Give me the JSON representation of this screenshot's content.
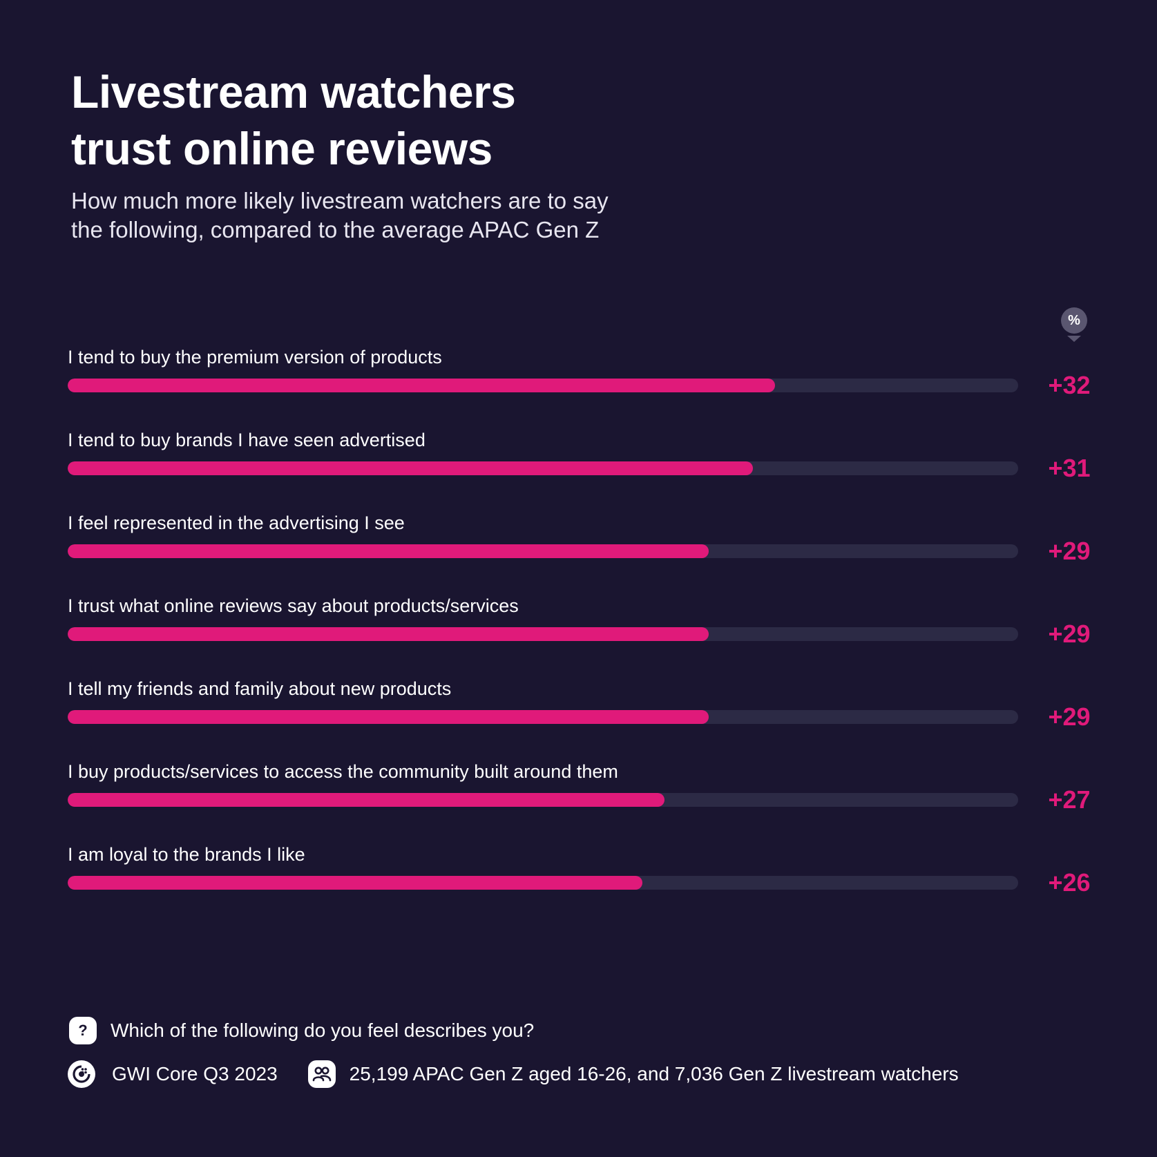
{
  "title": {
    "line1": "Livestream watchers",
    "line2": "trust online reviews"
  },
  "subtitle": {
    "line1": "How much more likely livestream watchers are to say",
    "line2": "the following, compared to the average APAC Gen Z"
  },
  "unit_badge": "%",
  "colors": {
    "background": "#1a1530",
    "bar_fill": "#e01a7a",
    "bar_track": "#2c2a45",
    "value_text": "#e01a7a"
  },
  "chart_data": {
    "type": "bar",
    "orientation": "horizontal",
    "title": "Livestream watchers trust online reviews",
    "subtitle": "How much more likely livestream watchers are to say the following, compared to the average APAC Gen Z",
    "unit": "%",
    "xlim": [
      0,
      43
    ],
    "categories": [
      "I tend to buy the premium version of products",
      "I tend to buy brands I have seen advertised",
      "I feel represented in the advertising I see",
      "I trust what online reviews say about products/services",
      "I tell my friends and family about new products",
      "I buy products/services to access the community built around them",
      "I am loyal to the brands I like"
    ],
    "values": [
      32,
      31,
      29,
      29,
      29,
      27,
      26
    ],
    "value_labels": [
      "+32",
      "+31",
      "+29",
      "+29",
      "+29",
      "+27",
      "+26"
    ]
  },
  "footer": {
    "question_icon": "question-mark-icon",
    "question": "Which of the following do you feel describes you?",
    "source_icon": "gwi-logo-icon",
    "source": "GWI Core Q3 2023",
    "audience_icon": "people-icon",
    "audience": "25,199 APAC Gen Z aged 16-26, and 7,036 Gen Z livestream watchers"
  }
}
